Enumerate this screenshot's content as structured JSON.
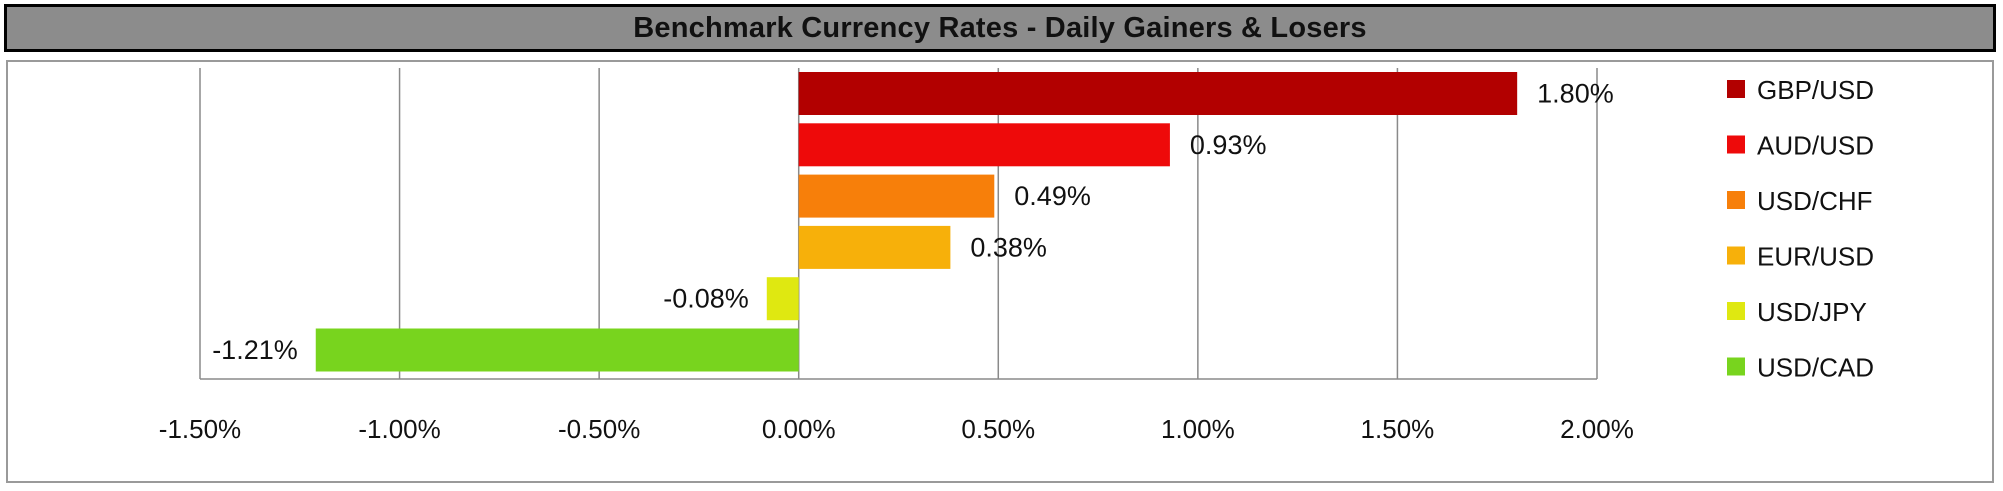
{
  "chart_data": {
    "type": "bar",
    "orientation": "horizontal",
    "title": "Benchmark Currency Rates - Daily Gainers & Losers",
    "xlabel": "",
    "ylabel": "",
    "xlim": [
      -0.015,
      0.02
    ],
    "x_ticks": [
      -0.015,
      -0.01,
      -0.005,
      0,
      0.005,
      0.01,
      0.015,
      0.02
    ],
    "x_tick_labels": [
      "-1.50%",
      "-1.00%",
      "-0.50%",
      "0.00%",
      "0.50%",
      "1.00%",
      "1.50%",
      "2.00%"
    ],
    "grid": "vertical",
    "legend_position": "right",
    "series": [
      {
        "name": "GBP/USD",
        "value": 0.018,
        "label": "1.80%",
        "color": "#b20000"
      },
      {
        "name": "AUD/USD",
        "value": 0.0093,
        "label": "0.93%",
        "color": "#ee0a0a"
      },
      {
        "name": "USD/CHF",
        "value": 0.0049,
        "label": "0.49%",
        "color": "#f77f0a"
      },
      {
        "name": "EUR/USD",
        "value": 0.0038,
        "label": "0.38%",
        "color": "#f7b00a"
      },
      {
        "name": "USD/JPY",
        "value": -0.0008,
        "label": "-0.08%",
        "color": "#dfe811"
      },
      {
        "name": "USD/CAD",
        "value": -0.0121,
        "label": "-1.21%",
        "color": "#78d41e"
      }
    ]
  }
}
